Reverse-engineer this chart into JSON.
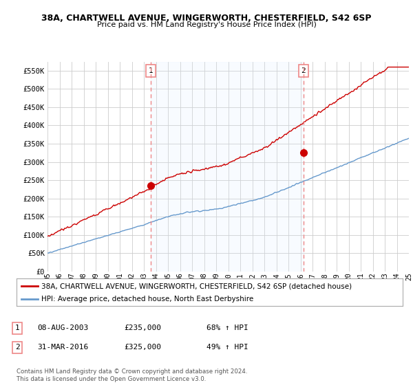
{
  "title1": "38A, CHARTWELL AVENUE, WINGERWORTH, CHESTERFIELD, S42 6SP",
  "title2": "Price paid vs. HM Land Registry's House Price Index (HPI)",
  "ylabel_ticks": [
    "£0",
    "£50K",
    "£100K",
    "£150K",
    "£200K",
    "£250K",
    "£300K",
    "£350K",
    "£400K",
    "£450K",
    "£500K",
    "£550K"
  ],
  "ytick_vals": [
    0,
    50000,
    100000,
    150000,
    200000,
    250000,
    300000,
    350000,
    400000,
    450000,
    500000,
    550000
  ],
  "legend_line1": "38A, CHARTWELL AVENUE, WINGERWORTH, CHESTERFIELD, S42 6SP (detached house)",
  "legend_line2": "HPI: Average price, detached house, North East Derbyshire",
  "line1_color": "#cc0000",
  "line2_color": "#6699cc",
  "fill_color": "#ddeeff",
  "marker1_date": 2003.583,
  "marker1_value": 235000,
  "marker2_date": 2016.25,
  "marker2_value": 325000,
  "table": [
    {
      "num": "1",
      "date": "08-AUG-2003",
      "price": "£235,000",
      "pct": "68% ↑ HPI"
    },
    {
      "num": "2",
      "date": "31-MAR-2016",
      "price": "£325,000",
      "pct": "49% ↑ HPI"
    }
  ],
  "footnote": "Contains HM Land Registry data © Crown copyright and database right 2024.\nThis data is licensed under the Open Government Licence v3.0.",
  "background_color": "#ffffff",
  "plot_bg_color": "#ffffff",
  "grid_color": "#cccccc",
  "vline_color": "#ee8888",
  "xmin": 1995,
  "xmax": 2025,
  "ymin": 0,
  "ymax": 575000
}
